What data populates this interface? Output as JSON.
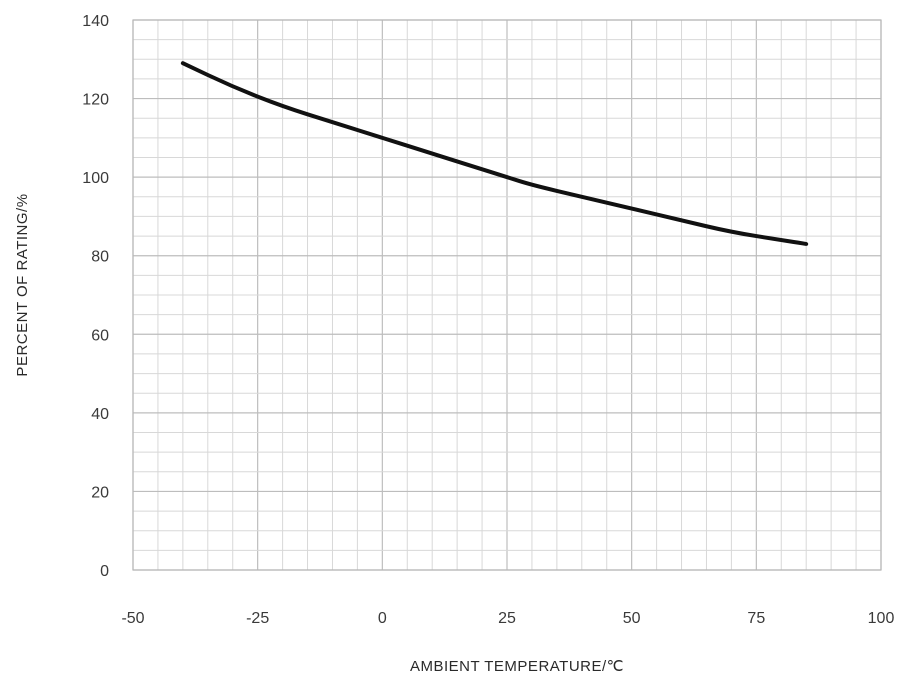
{
  "chart_data": {
    "type": "line",
    "title": "",
    "xlabel": "AMBIENT TEMPERATURE/℃",
    "ylabel": "PERCENT OF RATING/%",
    "xlim": [
      -50,
      100
    ],
    "ylim": [
      0,
      140
    ],
    "x_ticks": [
      "-50",
      "-25",
      "0",
      "25",
      "50",
      "75",
      "100"
    ],
    "y_ticks": [
      "0",
      "20",
      "40",
      "60",
      "80",
      "100",
      "120",
      "140"
    ],
    "grid": true,
    "series": [
      {
        "x": [
          -40,
          -30,
          -20,
          -10,
          0,
          10,
          20,
          25,
          30,
          40,
          50,
          60,
          70,
          80,
          85
        ],
        "y": [
          129,
          123,
          118,
          114,
          110,
          106,
          102,
          100,
          98,
          95,
          92,
          89,
          86,
          84,
          83
        ],
        "color": "#111111"
      }
    ]
  }
}
